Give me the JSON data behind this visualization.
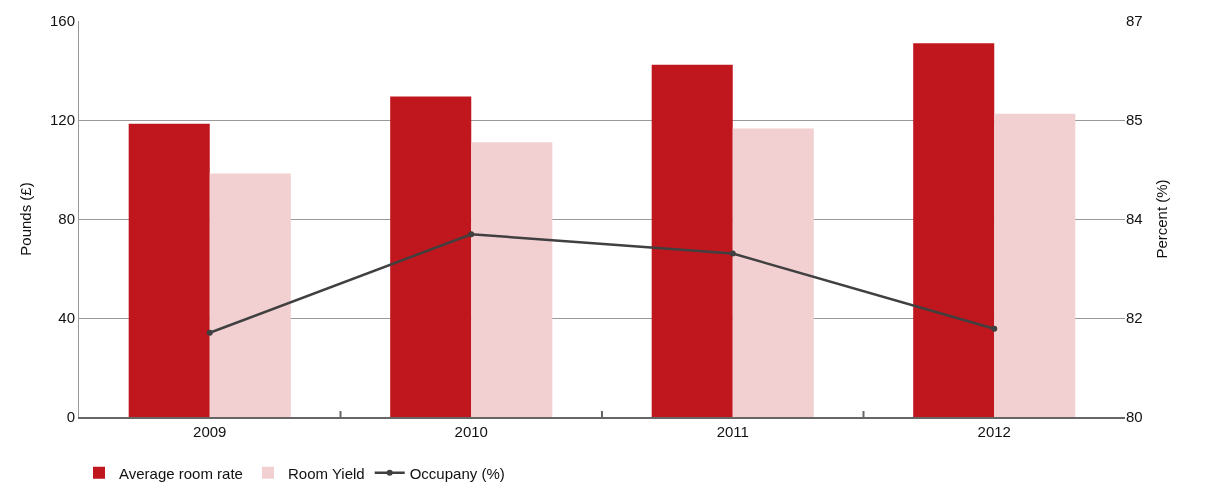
{
  "chart_data": {
    "type": "bar",
    "categories": [
      "2009",
      "2010",
      "2011",
      "2012"
    ],
    "ylabel": "Pounds (£)",
    "y2label": "Percent (%)",
    "ylim": [
      0,
      160
    ],
    "yticks": [
      0,
      40,
      80,
      120,
      160
    ],
    "y2lim": [
      80,
      87
    ],
    "y2ticks": [
      80,
      {
        "value": 81.75,
        "label": "82"
      },
      {
        "value": 83.5,
        "label": "84"
      },
      {
        "value": 85.25,
        "label": "85"
      },
      87
    ],
    "grid": "y",
    "legend": "bottom left",
    "series": [
      {
        "name": "Average room rate",
        "color": "#c0161d",
        "values": [
          118.5,
          129.5,
          142.3,
          151
        ]
      },
      {
        "name": "Room Yield",
        "color": "#f2d0d2",
        "values": [
          98.4,
          111,
          116.6,
          122.5
        ]
      },
      {
        "name": "Occupany (%)",
        "type": "line",
        "axis": "y2",
        "color": "#404040",
        "marker": "circle",
        "values": [
          81.49,
          83.23,
          82.89,
          81.56
        ]
      }
    ]
  }
}
